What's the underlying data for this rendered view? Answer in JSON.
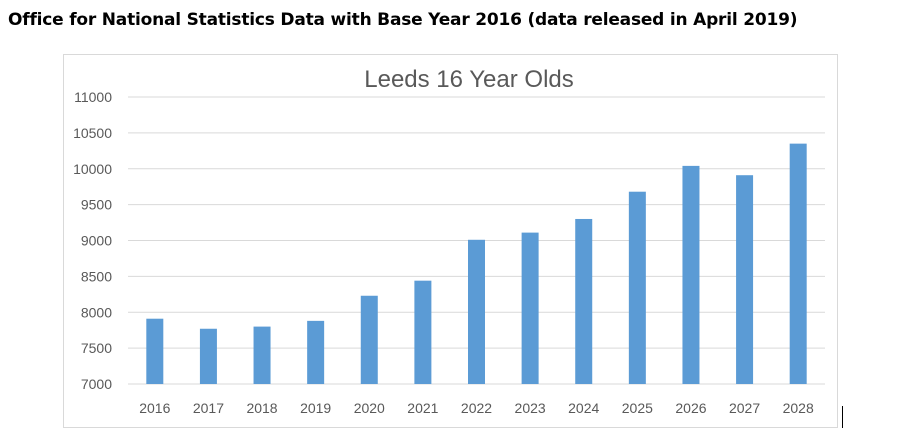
{
  "page": {
    "heading": "Office for National Statistics Data with Base Year 2016 (data released in April 2019)"
  },
  "chart_data": {
    "type": "bar",
    "title": "Leeds 16 Year Olds",
    "xlabel": "",
    "ylabel": "",
    "categories": [
      "2016",
      "2017",
      "2018",
      "2019",
      "2020",
      "2021",
      "2022",
      "2023",
      "2024",
      "2025",
      "2026",
      "2027",
      "2028"
    ],
    "values": [
      7910,
      7770,
      7800,
      7880,
      8230,
      8440,
      9010,
      9110,
      9300,
      9680,
      10040,
      9910,
      10350
    ],
    "ylim": [
      7000,
      11000
    ],
    "yticks": [
      "7000",
      "7500",
      "8000",
      "8500",
      "9000",
      "9500",
      "10000",
      "10500",
      "11000"
    ],
    "grid": true,
    "legend": "none",
    "bar_color": "#5b9bd5",
    "grid_color": "#d9d9d9"
  }
}
